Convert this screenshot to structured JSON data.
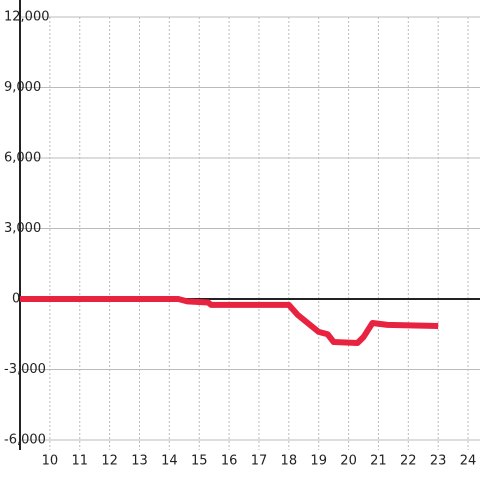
{
  "chart_data": {
    "type": "line",
    "series": [
      {
        "color": "#e8233f",
        "x": [
          9,
          14.3,
          14.6,
          15.3,
          15.4,
          18,
          18.3,
          19,
          19.3,
          19.5,
          20.3,
          20.5,
          20.8,
          21.3,
          23
        ],
        "values": [
          0,
          0,
          -100,
          -150,
          -250,
          -250,
          -680,
          -1400,
          -1500,
          -1830,
          -1870,
          -1620,
          -1020,
          -1100,
          -1150
        ]
      }
    ],
    "xlim": [
      9,
      24.4
    ],
    "xticks": [
      10,
      11,
      12,
      13,
      14,
      15,
      16,
      17,
      18,
      19,
      20,
      21,
      22,
      23,
      24
    ],
    "ylim": [
      -6000,
      12000
    ],
    "yticks": [
      {
        "value": -6000,
        "label": "-6,000"
      },
      {
        "value": -3000,
        "label": "-3,000"
      },
      0,
      {
        "value": 3000,
        "label": "3,000"
      },
      {
        "value": 6000,
        "label": "6,000"
      },
      {
        "value": 9000,
        "label": "9,000"
      },
      {
        "value": 12000,
        "label": "12,000"
      }
    ],
    "grid": true
  }
}
